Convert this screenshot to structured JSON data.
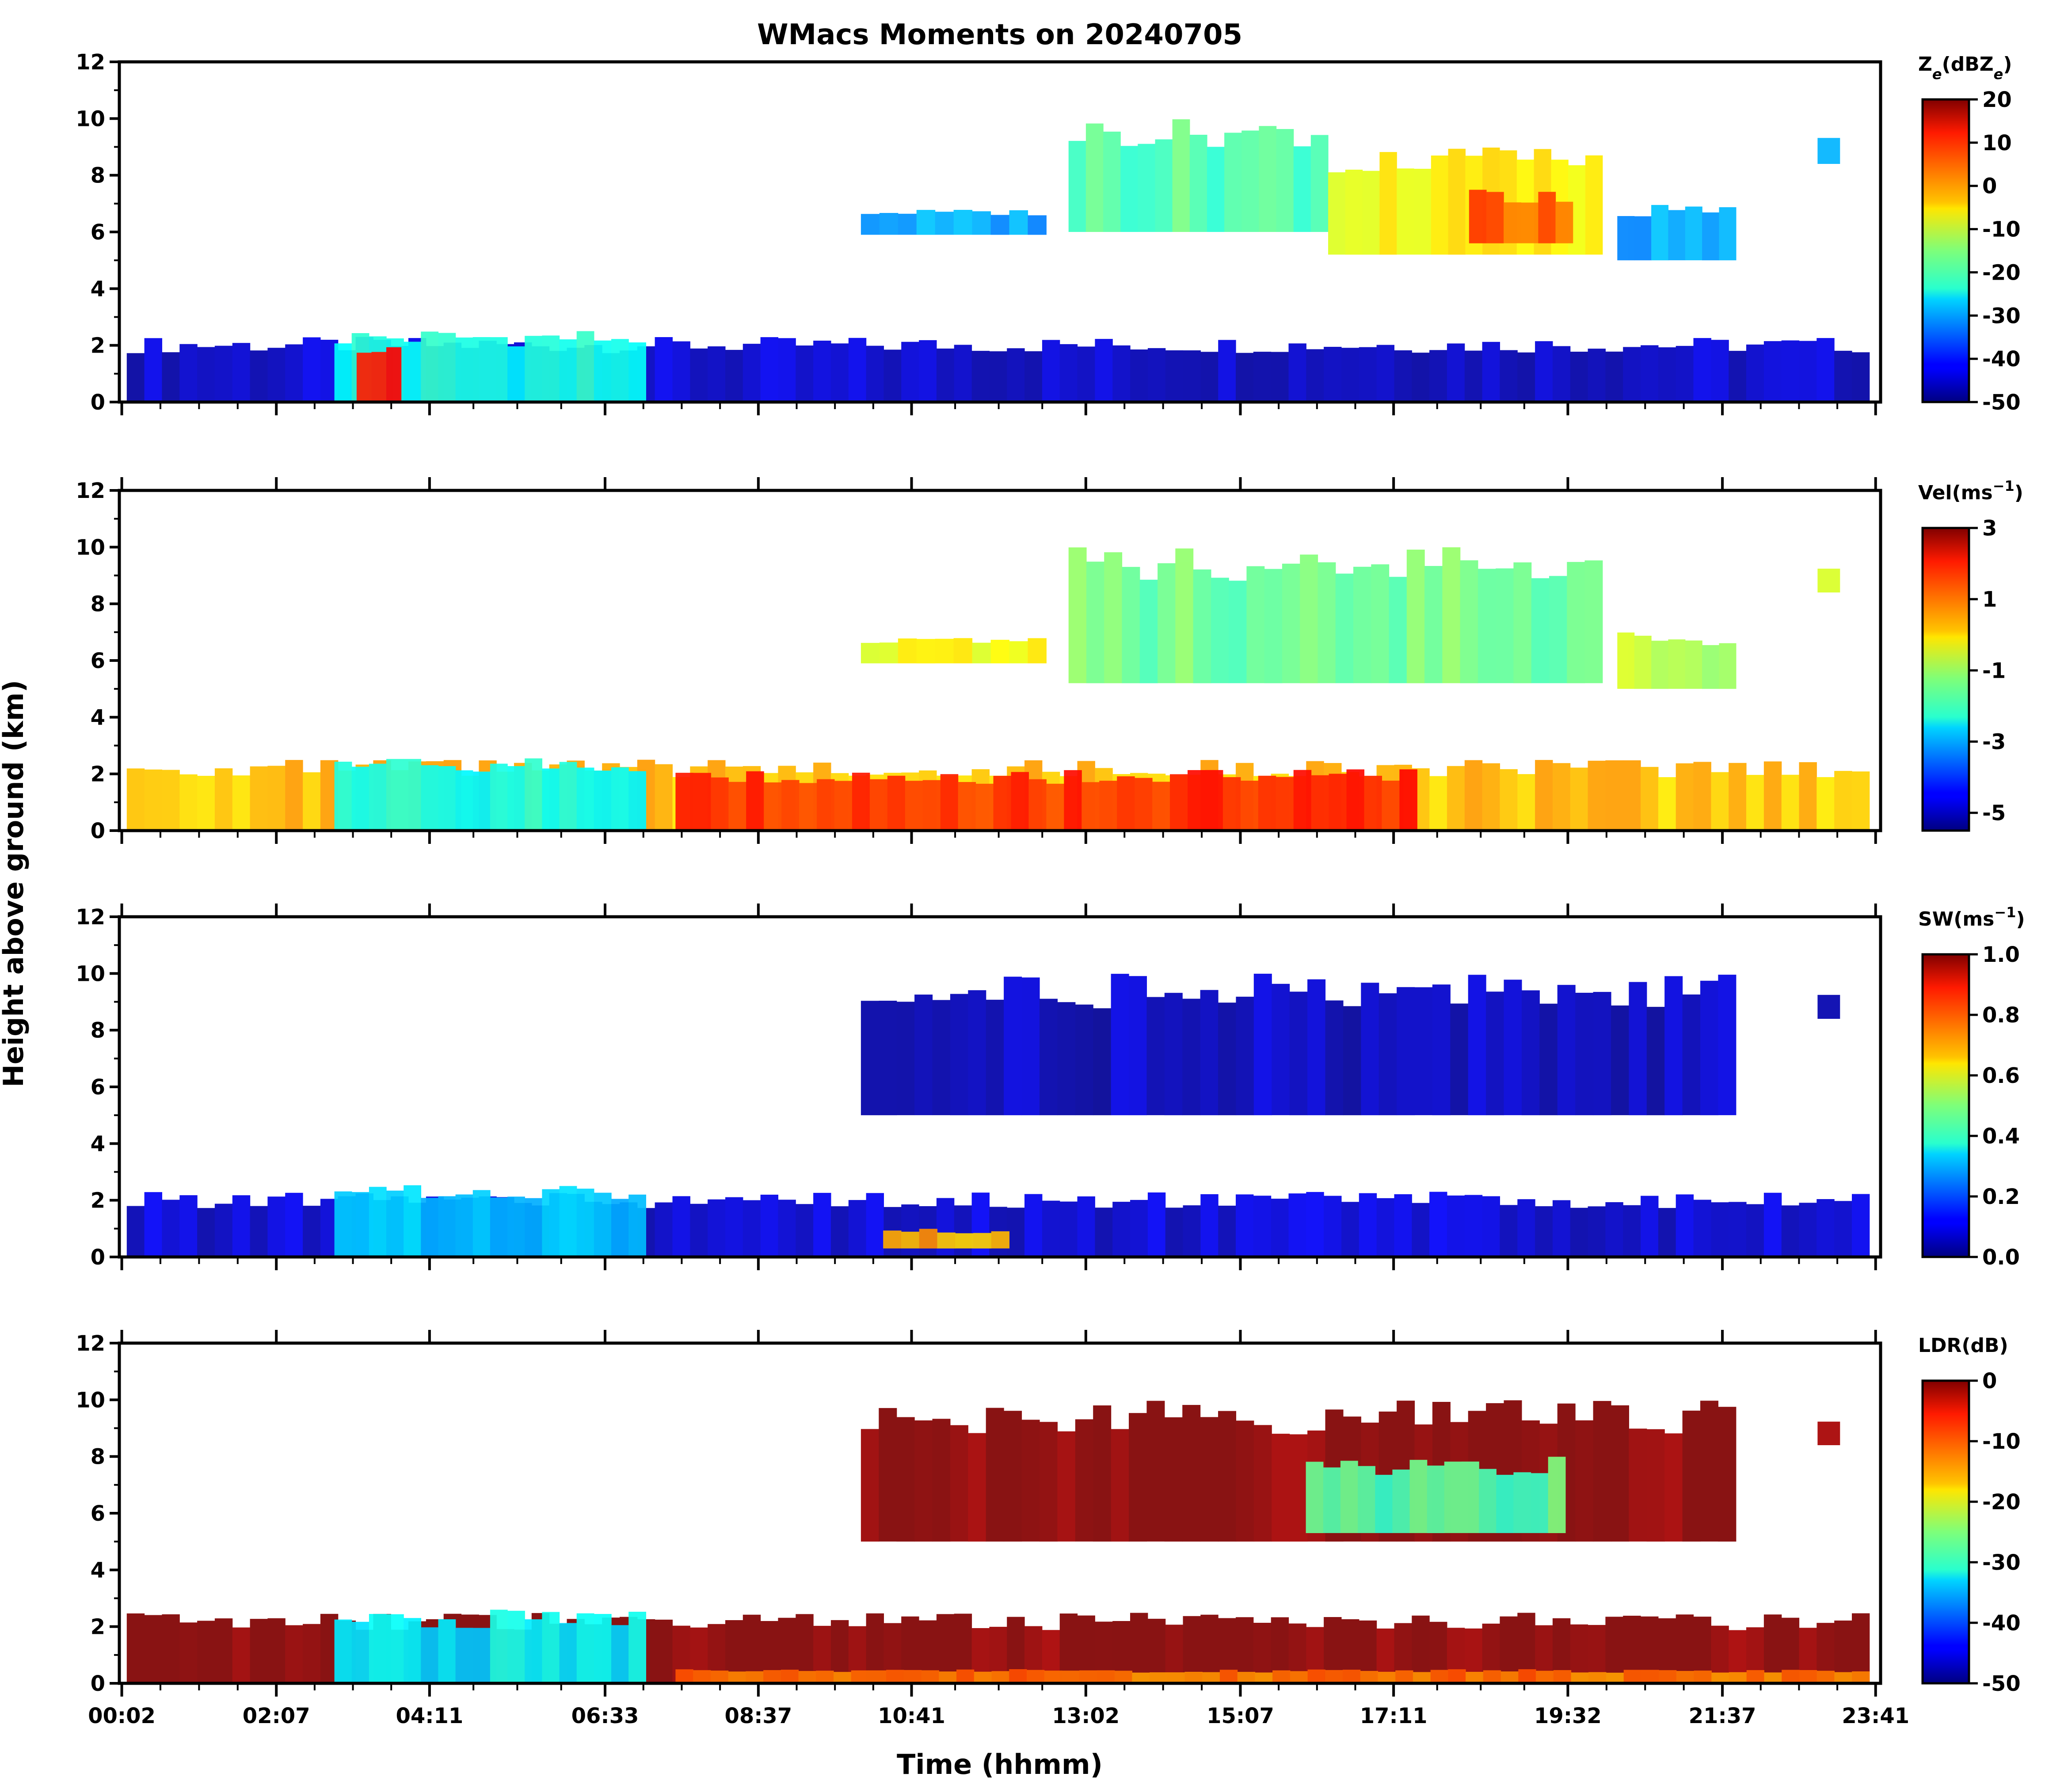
{
  "chart_data": {
    "type": "heatmap",
    "title": "WMacs Moments on 20240705",
    "xlabel": "Time (hhmm)",
    "ylabel": "Height above ground (km)",
    "x_tick_labels": [
      "00:02",
      "02:07",
      "04:11",
      "06:33",
      "08:37",
      "10:41",
      "13:02",
      "15:07",
      "17:11",
      "19:32",
      "21:37",
      "23:41"
    ],
    "x_tick_hours": [
      0.033,
      2.117,
      4.183,
      6.55,
      8.617,
      10.683,
      13.033,
      15.117,
      17.183,
      19.533,
      21.617,
      23.683
    ],
    "xlim_hours": [
      0.0,
      23.75
    ],
    "ylim_km": [
      0,
      12
    ],
    "y_ticks": [
      0,
      2,
      4,
      6,
      8,
      10,
      12
    ],
    "y_tick_labels": [
      "0",
      "2",
      "4",
      "6",
      "8",
      "10",
      "12"
    ],
    "panels": [
      {
        "name": "reflectivity",
        "colorbar_label": "Ze(dBZe)",
        "colorbar_label_main": "Z",
        "colorbar_label_sub": "e",
        "colorbar_label_paren": "(dBZ",
        "colorbar_label_paren_sub": "e",
        "colorbar_label_close": ")",
        "vmin": -50,
        "vmax": 20,
        "colorbar_ticks": [
          -50,
          -40,
          -30,
          -20,
          -10,
          0,
          10,
          20
        ],
        "colorbar_tick_labels": [
          "-50",
          "-40",
          "-30",
          "-20",
          "-10",
          "0",
          "10",
          "20"
        ],
        "colormap": "jet",
        "layers": [
          {
            "desc": "boundary layer clutter",
            "t0": 0.1,
            "t1": 23.6,
            "h0": 0.0,
            "h1": 2.3,
            "value": -45
          },
          {
            "desc": "early low cloud",
            "t0": 2.9,
            "t1": 7.1,
            "h0": 0.0,
            "h1": 2.6,
            "value": -22
          },
          {
            "desc": "precip core",
            "t0": 3.2,
            "t1": 3.8,
            "h0": 0.0,
            "h1": 2.3,
            "value": 12
          },
          {
            "desc": "upper cloud west",
            "t0": 10.0,
            "t1": 12.5,
            "h0": 5.9,
            "h1": 6.8,
            "value": -30
          },
          {
            "desc": "upper cloud a",
            "t0": 12.8,
            "t1": 16.3,
            "h0": 6.0,
            "h1": 10.0,
            "value": -18
          },
          {
            "desc": "upper cloud b",
            "t0": 16.3,
            "t1": 20.0,
            "h0": 5.2,
            "h1": 9.0,
            "value": -6
          },
          {
            "desc": "upper cloud core",
            "t0": 18.2,
            "t1": 19.6,
            "h0": 5.6,
            "h1": 7.5,
            "value": 5
          },
          {
            "desc": "upper cloud east",
            "t0": 20.2,
            "t1": 21.8,
            "h0": 5.0,
            "h1": 7.0,
            "value": -30
          },
          {
            "desc": "isolated cell",
            "t0": 22.9,
            "t1": 23.2,
            "h0": 8.4,
            "h1": 9.5,
            "value": -28
          }
        ]
      },
      {
        "name": "velocity",
        "colorbar_label": "Vel(ms-1)",
        "colorbar_label_main": "Vel(ms",
        "colorbar_label_sup": "−1",
        "colorbar_label_close": ")",
        "vmin": -5.5,
        "vmax": 3,
        "colorbar_ticks": [
          -5,
          -3,
          -1,
          1,
          3
        ],
        "colorbar_tick_labels": [
          "-5",
          "-3",
          "-1",
          "1",
          "3"
        ],
        "colormap": "jet",
        "layers": [
          {
            "desc": "boundary layer",
            "t0": 0.1,
            "t1": 23.6,
            "h0": 0.0,
            "h1": 2.5,
            "value": 0.3
          },
          {
            "desc": "BL updrafts",
            "t0": 7.5,
            "t1": 17.5,
            "h0": 0.0,
            "h1": 2.2,
            "value": 1.6
          },
          {
            "desc": "early low cloud",
            "t0": 2.9,
            "t1": 7.1,
            "h0": 0.0,
            "h1": 2.6,
            "value": -2.2
          },
          {
            "desc": "upper cloud west",
            "t0": 10.0,
            "t1": 12.5,
            "h0": 5.9,
            "h1": 6.8,
            "value": -0.3
          },
          {
            "desc": "upper cloud",
            "t0": 12.8,
            "t1": 20.0,
            "h0": 5.2,
            "h1": 10.0,
            "value": -1.4
          },
          {
            "desc": "upper cloud east",
            "t0": 20.2,
            "t1": 21.8,
            "h0": 5.0,
            "h1": 7.0,
            "value": -0.8
          },
          {
            "desc": "isolated cell",
            "t0": 22.9,
            "t1": 23.2,
            "h0": 8.4,
            "h1": 9.5,
            "value": -0.2
          }
        ]
      },
      {
        "name": "spectrum_width",
        "colorbar_label": "SW(ms-1)",
        "colorbar_label_main": "SW(ms",
        "colorbar_label_sup": "−1",
        "colorbar_label_close": ")",
        "vmin": 0.0,
        "vmax": 1.0,
        "colorbar_ticks": [
          0.0,
          0.2,
          0.4,
          0.6,
          0.8,
          1.0
        ],
        "colorbar_tick_labels": [
          "0.0",
          "0.2",
          "0.4",
          "0.6",
          "0.8",
          "1.0"
        ],
        "colormap": "jet",
        "layers": [
          {
            "desc": "boundary layer",
            "t0": 0.1,
            "t1": 23.6,
            "h0": 0.0,
            "h1": 2.3,
            "value": 0.08
          },
          {
            "desc": "early low cloud",
            "t0": 2.9,
            "t1": 7.1,
            "h0": 0.0,
            "h1": 2.6,
            "value": 0.32
          },
          {
            "desc": "turbulent patches",
            "t0": 10.3,
            "t1": 12.0,
            "h0": 0.3,
            "h1": 1.0,
            "value": 0.7
          },
          {
            "desc": "upper cloud",
            "t0": 10.0,
            "t1": 21.8,
            "h0": 5.0,
            "h1": 10.0,
            "value": 0.06
          },
          {
            "desc": "isolated cell",
            "t0": 22.9,
            "t1": 23.2,
            "h0": 8.4,
            "h1": 9.5,
            "value": 0.08
          }
        ]
      },
      {
        "name": "ldr",
        "colorbar_label": "LDR(dB)",
        "colorbar_label_main": "LDR(dB)",
        "vmin": -50,
        "vmax": 0,
        "colorbar_ticks": [
          -50,
          -40,
          -30,
          -20,
          -10,
          0
        ],
        "colorbar_tick_labels": [
          "-50",
          "-40",
          "-30",
          "-20",
          "-10",
          "0"
        ],
        "colormap": "jet",
        "layers": [
          {
            "desc": "boundary layer",
            "t0": 0.1,
            "t1": 23.6,
            "h0": 0.0,
            "h1": 2.5,
            "value": 0
          },
          {
            "desc": "BL near surface",
            "t0": 7.5,
            "t1": 23.6,
            "h0": 0.0,
            "h1": 0.5,
            "value": -12
          },
          {
            "desc": "early low cloud",
            "t0": 2.9,
            "t1": 7.1,
            "h0": 0.0,
            "h1": 2.6,
            "value": -32
          },
          {
            "desc": "upper cloud",
            "t0": 10.0,
            "t1": 21.8,
            "h0": 5.0,
            "h1": 10.0,
            "value": 0
          },
          {
            "desc": "ice layer",
            "t0": 16.0,
            "t1": 19.5,
            "h0": 5.3,
            "h1": 8.0,
            "value": -27
          },
          {
            "desc": "isolated cell",
            "t0": 22.9,
            "t1": 23.2,
            "h0": 8.4,
            "h1": 9.5,
            "value": 0
          }
        ]
      }
    ]
  }
}
